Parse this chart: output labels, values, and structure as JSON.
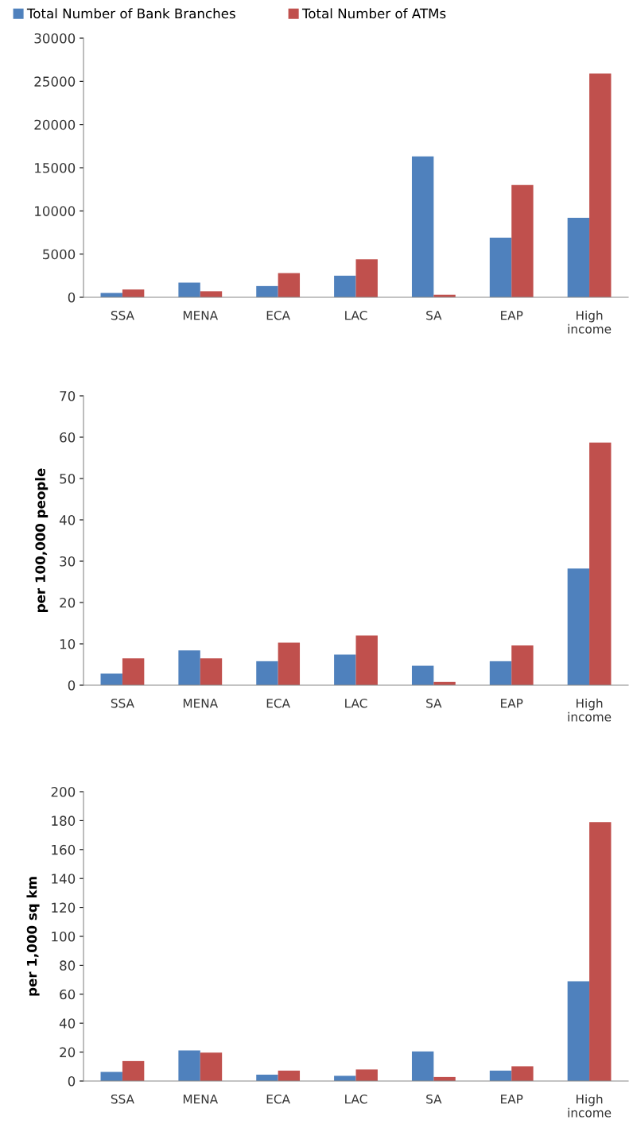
{
  "chart_data": [
    {
      "type": "bar",
      "categories": [
        "SSA",
        "MENA",
        "ECA",
        "LAC",
        "SA",
        "EAP",
        "High\nincome"
      ],
      "ylim": [
        0,
        30000
      ],
      "yticks": [
        0,
        5000,
        10000,
        15000,
        20000,
        25000,
        30000
      ],
      "legend": "top left",
      "grid": false,
      "series": [
        {
          "name": "Total Number of Bank Branches",
          "color": "#4f81bd",
          "values": [
            500,
            1700,
            1300,
            2500,
            16300,
            6900,
            9200
          ]
        },
        {
          "name": "Total Number of ATMs",
          "color": "#c0504d",
          "values": [
            900,
            700,
            2800,
            4400,
            300,
            13000,
            25900
          ]
        }
      ]
    },
    {
      "type": "bar",
      "categories": [
        "SSA",
        "MENA",
        "ECA",
        "LAC",
        "SA",
        "EAP",
        "High\nincome"
      ],
      "ylabel": "per 100,000 people",
      "ylim": [
        0,
        70
      ],
      "yticks": [
        0,
        10,
        20,
        30,
        40,
        50,
        60,
        70
      ],
      "grid": false,
      "series": [
        {
          "color": "#4f81bd",
          "values": [
            2.8,
            8.4,
            5.8,
            7.4,
            4.7,
            5.8,
            28.2
          ]
        },
        {
          "color": "#c0504d",
          "values": [
            6.5,
            6.5,
            10.3,
            12,
            0.8,
            9.6,
            58.7
          ]
        }
      ]
    },
    {
      "type": "bar",
      "categories": [
        "SSA",
        "MENA",
        "ECA",
        "LAC",
        "SA",
        "EAP",
        "High\nincome"
      ],
      "ylabel": "per 1,000 sq km",
      "ylim": [
        0,
        200
      ],
      "yticks": [
        0,
        20,
        40,
        60,
        80,
        100,
        120,
        140,
        160,
        180,
        200
      ],
      "grid": false,
      "series": [
        {
          "color": "#4f81bd",
          "values": [
            6.3,
            21.2,
            4.4,
            3.6,
            20.4,
            7.2,
            69
          ]
        },
        {
          "color": "#c0504d",
          "values": [
            13.8,
            19.6,
            7.2,
            8,
            2.8,
            10.2,
            179
          ]
        }
      ]
    }
  ]
}
